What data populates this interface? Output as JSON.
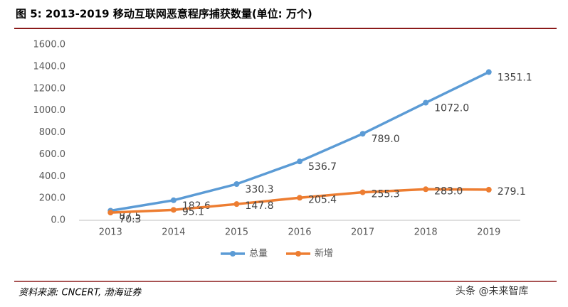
{
  "chart_data": {
    "type": "line",
    "title": "图 5:  2013-2019 移动互联网恶意程序捕获数量(单位: 万个)",
    "categories": [
      "2013",
      "2014",
      "2015",
      "2016",
      "2017",
      "2018",
      "2019"
    ],
    "series": [
      {
        "name": "总量",
        "color": "#5b9bd5",
        "values": [
          87.5,
          182.6,
          330.3,
          536.7,
          789.0,
          1072.0,
          1351.1
        ],
        "value_labels": [
          "87.5",
          "182.6",
          "330.3",
          "536.7",
          "789.0",
          "1072.0",
          "1351.1"
        ]
      },
      {
        "name": "新增",
        "color": "#ed7d31",
        "values": [
          70.3,
          95.1,
          147.8,
          205.4,
          255.3,
          283.0,
          279.1
        ],
        "value_labels": [
          "70.3",
          "95.1",
          "147.8",
          "205.4",
          "255.3",
          "283.0",
          "279.1"
        ]
      }
    ],
    "ylim": [
      0,
      1600
    ],
    "yticks": [
      {
        "value": 0,
        "label": "0.0"
      },
      {
        "value": 200,
        "label": "200.0"
      },
      {
        "value": 400,
        "label": "400.0"
      },
      {
        "value": 600,
        "label": "600.0"
      },
      {
        "value": 800,
        "label": "800.0"
      },
      {
        "value": 1000,
        "label": "1000.0"
      },
      {
        "value": 1200,
        "label": "1200.0"
      },
      {
        "value": 1400,
        "label": "1400.0"
      },
      {
        "value": 1600,
        "label": "1600.0"
      }
    ],
    "grid": false,
    "legend": "bottom",
    "source": "资料来源: CNCERT, 渤海证券",
    "watermark": "头条 @未来智库"
  }
}
